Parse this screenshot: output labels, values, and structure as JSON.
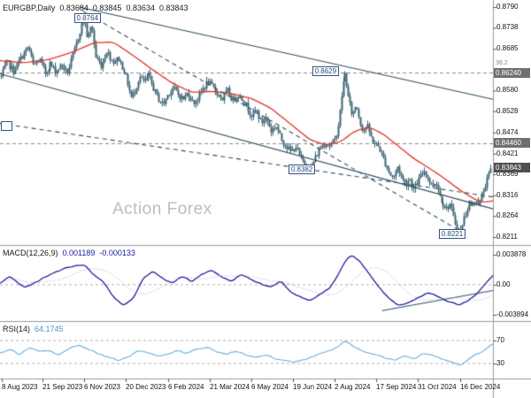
{
  "title": {
    "symbol": "EURGBP,Daily",
    "open": "0.83684",
    "high": "0.83845",
    "low": "0.83634",
    "close": "0.83843"
  },
  "watermark": "Action Forex",
  "colors": {
    "candle": "#3c6472",
    "ma": "#e03328",
    "macd_main": "#1c1c9e",
    "macd_signal": "#9aa0dd",
    "rsi": "#63aedd",
    "axis_text": "#111111",
    "level_box_bg": "#6f6f6f",
    "current_box_bg": "#4f4f4f",
    "annotation_border": "#33557f",
    "annotation_text": "#2b4a7c",
    "watermark_color": "#bdbdbd",
    "grid": "#8a8a8a",
    "trendline": "#2f4f5f",
    "divider": "#9a9a9a"
  },
  "price_axis": {
    "ticks": [
      {
        "label": "0.8790",
        "value": 0.879
      },
      {
        "label": "0.8738",
        "value": 0.8738
      },
      {
        "label": "0.8685",
        "value": 0.8685
      },
      {
        "label": "0.8580",
        "value": 0.858
      },
      {
        "label": "0.8528",
        "value": 0.8528
      },
      {
        "label": "0.8474",
        "value": 0.8474
      },
      {
        "label": "0.8421",
        "value": 0.8421
      },
      {
        "label": "0.8369",
        "value": 0.8369
      },
      {
        "label": "0.8316",
        "value": 0.8316
      },
      {
        "label": "0.8264",
        "value": 0.8264
      },
      {
        "label": "0.8211",
        "value": 0.8211
      }
    ],
    "levels": [
      {
        "label": "0.86240",
        "value": 0.8624,
        "note": "38.2"
      },
      {
        "label": "0.84460",
        "value": 0.8446
      }
    ],
    "current": {
      "label": "0.83843",
      "value": 0.83843
    }
  },
  "annotations": [
    {
      "label": "0.8764",
      "x": 0.15,
      "value": 0.8764
    },
    {
      "label": "0.8629",
      "x": 0.633,
      "value": 0.8629
    },
    {
      "label": "0.8382",
      "x": 0.585,
      "value": 0.8382
    },
    {
      "label": "0.8221",
      "x": 0.89,
      "value": 0.8221
    }
  ],
  "macd": {
    "name": "MACD(12,26,9)",
    "main_value": "0.001189",
    "signal_value": "-0.000133",
    "axis": [
      {
        "label": "0.003878",
        "value": 0.003878
      },
      {
        "label": "0.00",
        "value": 0
      },
      {
        "label": "-0.003894",
        "value": -0.003894
      }
    ]
  },
  "rsi": {
    "name": "RSI(14)",
    "value": "64.1745",
    "axis": [
      {
        "label": "70",
        "value": 70
      },
      {
        "label": "30",
        "value": 30
      }
    ]
  },
  "time_axis": [
    {
      "label": "8 Aug 2023",
      "x": 0.004
    },
    {
      "label": "21 Sep 2023",
      "x": 0.086
    },
    {
      "label": "6 Nov 2023",
      "x": 0.171
    },
    {
      "label": "20 Dec 2023",
      "x": 0.255
    },
    {
      "label": "6 Feb 2024",
      "x": 0.341
    },
    {
      "label": "21 Mar 2024",
      "x": 0.426
    },
    {
      "label": "6 May 2024",
      "x": 0.51
    },
    {
      "label": "19 Jun 2024",
      "x": 0.594
    },
    {
      "label": "2 Aug 2024",
      "x": 0.679
    },
    {
      "label": "17 Sep 2024",
      "x": 0.763
    },
    {
      "label": "31 Oct 2024",
      "x": 0.847
    },
    {
      "label": "16 Dec 2024",
      "x": 0.933
    }
  ],
  "chart_data": {
    "type": "candlestick",
    "symbol": "EURGBP",
    "timeframe": "Daily",
    "price_ylim": [
      0.8211,
      0.879
    ],
    "macd_ylim": [
      -0.003894,
      0.003878
    ],
    "rsi_ylim": [
      0,
      100
    ],
    "key_levels": [
      0.8764,
      0.8629,
      0.8624,
      0.8446,
      0.8382,
      0.8221,
      0.83843
    ],
    "close_path": [
      [
        0.0,
        0.8615
      ],
      [
        0.012,
        0.8652
      ],
      [
        0.025,
        0.8628
      ],
      [
        0.04,
        0.8662
      ],
      [
        0.055,
        0.869
      ],
      [
        0.065,
        0.8642
      ],
      [
        0.078,
        0.8658
      ],
      [
        0.09,
        0.8622
      ],
      [
        0.1,
        0.8648
      ],
      [
        0.112,
        0.8628
      ],
      [
        0.125,
        0.8645
      ],
      [
        0.135,
        0.8622
      ],
      [
        0.145,
        0.866
      ],
      [
        0.155,
        0.87
      ],
      [
        0.163,
        0.8738
      ],
      [
        0.17,
        0.8762
      ],
      [
        0.177,
        0.8708
      ],
      [
        0.185,
        0.8748
      ],
      [
        0.193,
        0.8665
      ],
      [
        0.205,
        0.8642
      ],
      [
        0.215,
        0.868
      ],
      [
        0.228,
        0.8652
      ],
      [
        0.24,
        0.866
      ],
      [
        0.25,
        0.8632
      ],
      [
        0.258,
        0.8598
      ],
      [
        0.265,
        0.8562
      ],
      [
        0.272,
        0.8578
      ],
      [
        0.282,
        0.8615
      ],
      [
        0.292,
        0.86
      ],
      [
        0.302,
        0.8618
      ],
      [
        0.312,
        0.8585
      ],
      [
        0.322,
        0.8558
      ],
      [
        0.332,
        0.8545
      ],
      [
        0.342,
        0.8572
      ],
      [
        0.352,
        0.8588
      ],
      [
        0.362,
        0.857
      ],
      [
        0.372,
        0.8558
      ],
      [
        0.382,
        0.8575
      ],
      [
        0.392,
        0.8548
      ],
      [
        0.402,
        0.856
      ],
      [
        0.412,
        0.8585
      ],
      [
        0.422,
        0.8602
      ],
      [
        0.432,
        0.8588
      ],
      [
        0.442,
        0.8572
      ],
      [
        0.452,
        0.8558
      ],
      [
        0.462,
        0.858
      ],
      [
        0.472,
        0.8555
      ],
      [
        0.482,
        0.857
      ],
      [
        0.492,
        0.8558
      ],
      [
        0.502,
        0.8542
      ],
      [
        0.512,
        0.8518
      ],
      [
        0.522,
        0.853
      ],
      [
        0.532,
        0.8498
      ],
      [
        0.542,
        0.8512
      ],
      [
        0.552,
        0.8478
      ],
      [
        0.562,
        0.8492
      ],
      [
        0.572,
        0.8458
      ],
      [
        0.582,
        0.8442
      ],
      [
        0.592,
        0.8425
      ],
      [
        0.602,
        0.844
      ],
      [
        0.612,
        0.8408
      ],
      [
        0.622,
        0.8392
      ],
      [
        0.632,
        0.8385
      ],
      [
        0.642,
        0.8412
      ],
      [
        0.652,
        0.8438
      ],
      [
        0.662,
        0.8448
      ],
      [
        0.672,
        0.844
      ],
      [
        0.682,
        0.8458
      ],
      [
        0.69,
        0.8505
      ],
      [
        0.697,
        0.8588
      ],
      [
        0.703,
        0.8625
      ],
      [
        0.71,
        0.856
      ],
      [
        0.718,
        0.8518
      ],
      [
        0.726,
        0.8545
      ],
      [
        0.733,
        0.8505
      ],
      [
        0.74,
        0.8478
      ],
      [
        0.748,
        0.8492
      ],
      [
        0.756,
        0.8462
      ],
      [
        0.764,
        0.8445
      ],
      [
        0.772,
        0.8438
      ],
      [
        0.78,
        0.8412
      ],
      [
        0.788,
        0.8388
      ],
      [
        0.795,
        0.8368
      ],
      [
        0.802,
        0.836
      ],
      [
        0.81,
        0.8388
      ],
      [
        0.818,
        0.8362
      ],
      [
        0.826,
        0.8342
      ],
      [
        0.834,
        0.836
      ],
      [
        0.842,
        0.833
      ],
      [
        0.85,
        0.8348
      ],
      [
        0.858,
        0.8368
      ],
      [
        0.865,
        0.838
      ],
      [
        0.872,
        0.8358
      ],
      [
        0.88,
        0.8338
      ],
      [
        0.888,
        0.8352
      ],
      [
        0.895,
        0.8318
      ],
      [
        0.902,
        0.83
      ],
      [
        0.91,
        0.8282
      ],
      [
        0.918,
        0.8295
      ],
      [
        0.925,
        0.8258
      ],
      [
        0.932,
        0.8235
      ],
      [
        0.938,
        0.8222
      ],
      [
        0.944,
        0.8252
      ],
      [
        0.95,
        0.8272
      ],
      [
        0.957,
        0.8298
      ],
      [
        0.963,
        0.8285
      ],
      [
        0.97,
        0.831
      ],
      [
        0.977,
        0.8292
      ],
      [
        0.984,
        0.8322
      ],
      [
        0.992,
        0.8352
      ],
      [
        1.0,
        0.8384
      ]
    ],
    "ma_path": [
      [
        0.0,
        0.8655
      ],
      [
        0.05,
        0.865
      ],
      [
        0.1,
        0.8658
      ],
      [
        0.15,
        0.8678
      ],
      [
        0.19,
        0.87
      ],
      [
        0.23,
        0.8702
      ],
      [
        0.27,
        0.8668
      ],
      [
        0.31,
        0.8632
      ],
      [
        0.35,
        0.8598
      ],
      [
        0.39,
        0.8575
      ],
      [
        0.43,
        0.8578
      ],
      [
        0.47,
        0.8572
      ],
      [
        0.51,
        0.856
      ],
      [
        0.55,
        0.8535
      ],
      [
        0.59,
        0.8495
      ],
      [
        0.63,
        0.8455
      ],
      [
        0.66,
        0.8443
      ],
      [
        0.69,
        0.845
      ],
      [
        0.72,
        0.8478
      ],
      [
        0.75,
        0.8488
      ],
      [
        0.78,
        0.8468
      ],
      [
        0.81,
        0.8438
      ],
      [
        0.84,
        0.8408
      ],
      [
        0.87,
        0.8385
      ],
      [
        0.9,
        0.836
      ],
      [
        0.93,
        0.8332
      ],
      [
        0.96,
        0.8308
      ],
      [
        0.98,
        0.8298
      ],
      [
        1.0,
        0.8302
      ]
    ],
    "macd_path": [
      [
        0.0,
        0.0002
      ],
      [
        0.02,
        0.0011
      ],
      [
        0.05,
        -0.0004
      ],
      [
        0.08,
        0.0006
      ],
      [
        0.11,
        0.0016
      ],
      [
        0.14,
        0.0023
      ],
      [
        0.17,
        0.0026
      ],
      [
        0.19,
        0.0013
      ],
      [
        0.21,
        0.0004
      ],
      [
        0.23,
        -0.0016
      ],
      [
        0.25,
        -0.0027
      ],
      [
        0.27,
        -0.0018
      ],
      [
        0.29,
        0.0008
      ],
      [
        0.31,
        0.0018
      ],
      [
        0.33,
        0.0008
      ],
      [
        0.35,
        0.0002
      ],
      [
        0.37,
        0.0011
      ],
      [
        0.39,
        0.0004
      ],
      [
        0.41,
        0.0014
      ],
      [
        0.43,
        0.0019
      ],
      [
        0.45,
        0.001
      ],
      [
        0.47,
        0.0004
      ],
      [
        0.49,
        0.0014
      ],
      [
        0.51,
        0.0007
      ],
      [
        0.53,
        0.0001
      ],
      [
        0.55,
        -0.0003
      ],
      [
        0.57,
        0.0005
      ],
      [
        0.59,
        -0.001
      ],
      [
        0.61,
        -0.0016
      ],
      [
        0.63,
        -0.0021
      ],
      [
        0.65,
        -0.0012
      ],
      [
        0.67,
        -0.0004
      ],
      [
        0.69,
        0.0018
      ],
      [
        0.705,
        0.0035
      ],
      [
        0.715,
        0.0038
      ],
      [
        0.73,
        0.003
      ],
      [
        0.75,
        0.0013
      ],
      [
        0.77,
        -0.0004
      ],
      [
        0.79,
        -0.0019
      ],
      [
        0.81,
        -0.0027
      ],
      [
        0.83,
        -0.0023
      ],
      [
        0.85,
        -0.0016
      ],
      [
        0.87,
        -0.001
      ],
      [
        0.89,
        -0.0016
      ],
      [
        0.91,
        -0.0022
      ],
      [
        0.93,
        -0.0026
      ],
      [
        0.95,
        -0.0021
      ],
      [
        0.97,
        -0.001
      ],
      [
        0.985,
        0.0002
      ],
      [
        1.0,
        0.0012
      ]
    ],
    "rsi_path": [
      [
        0.0,
        48
      ],
      [
        0.02,
        55
      ],
      [
        0.04,
        45
      ],
      [
        0.06,
        58
      ],
      [
        0.08,
        50
      ],
      [
        0.1,
        53
      ],
      [
        0.12,
        44
      ],
      [
        0.14,
        57
      ],
      [
        0.16,
        62
      ],
      [
        0.18,
        55
      ],
      [
        0.2,
        47
      ],
      [
        0.22,
        41
      ],
      [
        0.24,
        35
      ],
      [
        0.26,
        41
      ],
      [
        0.28,
        52
      ],
      [
        0.3,
        48
      ],
      [
        0.32,
        42
      ],
      [
        0.34,
        46
      ],
      [
        0.36,
        53
      ],
      [
        0.38,
        48
      ],
      [
        0.4,
        55
      ],
      [
        0.42,
        58
      ],
      [
        0.44,
        50
      ],
      [
        0.46,
        46
      ],
      [
        0.48,
        52
      ],
      [
        0.5,
        45
      ],
      [
        0.52,
        40
      ],
      [
        0.54,
        45
      ],
      [
        0.56,
        38
      ],
      [
        0.58,
        35
      ],
      [
        0.6,
        33
      ],
      [
        0.62,
        37
      ],
      [
        0.64,
        45
      ],
      [
        0.66,
        50
      ],
      [
        0.68,
        56
      ],
      [
        0.7,
        70
      ],
      [
        0.72,
        58
      ],
      [
        0.74,
        50
      ],
      [
        0.76,
        46
      ],
      [
        0.78,
        40
      ],
      [
        0.8,
        35
      ],
      [
        0.82,
        43
      ],
      [
        0.84,
        38
      ],
      [
        0.86,
        48
      ],
      [
        0.88,
        44
      ],
      [
        0.9,
        36
      ],
      [
        0.92,
        32
      ],
      [
        0.935,
        27
      ],
      [
        0.95,
        36
      ],
      [
        0.96,
        42
      ],
      [
        0.97,
        48
      ],
      [
        0.98,
        52
      ],
      [
        0.99,
        58
      ],
      [
        1.0,
        64
      ]
    ],
    "trendlines": [
      {
        "panel": "price",
        "dashed": false,
        "points": [
          [
            0.16,
            0.879
          ],
          [
            1.0,
            0.8558
          ]
        ]
      },
      {
        "panel": "price",
        "dashed": false,
        "points": [
          [
            0.0,
            0.8622
          ],
          [
            1.0,
            0.8282
          ]
        ]
      },
      {
        "panel": "price",
        "dashed": true,
        "points": [
          [
            0.168,
            0.878
          ],
          [
            0.935,
            0.8225
          ]
        ]
      },
      {
        "panel": "price",
        "dashed": true,
        "points": [
          [
            0.0,
            0.8497
          ],
          [
            1.0,
            0.8312
          ]
        ]
      },
      {
        "panel": "macd",
        "dashed": false,
        "points": [
          [
            0.775,
            -0.00335
          ],
          [
            1.0,
            -0.00075
          ]
        ]
      }
    ],
    "hlines": [
      {
        "value": 0.8624,
        "dashed": true
      },
      {
        "value": 0.8446,
        "dashed": true
      }
    ],
    "macd_zero_line": true,
    "rsi_levels": [
      70,
      30
    ],
    "legend_position": "none",
    "grid": "off"
  }
}
